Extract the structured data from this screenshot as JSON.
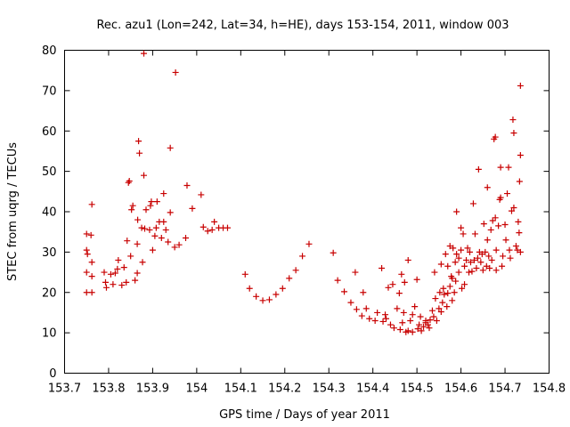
{
  "chart_data": {
    "type": "scatter",
    "title": "Rec. azu1 (Lon=242, Lat=34, h=HE), days 153-154, 2011, window 003",
    "xlabel": "GPS time / Days of year 2011",
    "ylabel": "STEC from uqrg / TECUs",
    "xlim": [
      153.7,
      154.8
    ],
    "ylim": [
      0,
      80
    ],
    "xticks": [
      153.7,
      153.8,
      153.9,
      154,
      154.1,
      154.2,
      154.3,
      154.4,
      154.5,
      154.6,
      154.7,
      154.8
    ],
    "xtick_labels": [
      "153.7",
      "153.8",
      "153.9",
      "154",
      "154.1",
      "154.2",
      "154.3",
      "154.4",
      "154.5",
      "154.6",
      "154.7",
      "154.8"
    ],
    "yticks": [
      0,
      10,
      20,
      30,
      40,
      50,
      60,
      70,
      80
    ],
    "ytick_labels": [
      "0",
      "10",
      "20",
      "30",
      "40",
      "50",
      "60",
      "70",
      "80"
    ],
    "grid": false,
    "marker": "+",
    "color": "#c80000",
    "points": [
      [
        153.75,
        34.5
      ],
      [
        153.76,
        34.2
      ],
      [
        153.762,
        41.8
      ],
      [
        153.75,
        30.5
      ],
      [
        153.752,
        29.5
      ],
      [
        153.762,
        27.5
      ],
      [
        153.75,
        25
      ],
      [
        153.762,
        24
      ],
      [
        153.75,
        20
      ],
      [
        153.762,
        20
      ],
      [
        153.79,
        25
      ],
      [
        153.793,
        22.5
      ],
      [
        153.795,
        21.2
      ],
      [
        153.805,
        24.5
      ],
      [
        153.81,
        22
      ],
      [
        153.815,
        24.8
      ],
      [
        153.82,
        25.8
      ],
      [
        153.822,
        28
      ],
      [
        153.83,
        21.8
      ],
      [
        153.835,
        26.2
      ],
      [
        153.84,
        22.5
      ],
      [
        153.842,
        32.8
      ],
      [
        153.845,
        47.2
      ],
      [
        153.847,
        47.6
      ],
      [
        153.85,
        29
      ],
      [
        153.852,
        40.5
      ],
      [
        153.855,
        41.5
      ],
      [
        153.86,
        23
      ],
      [
        153.865,
        24.8
      ],
      [
        153.865,
        32
      ],
      [
        153.866,
        38
      ],
      [
        153.868,
        57.5
      ],
      [
        153.87,
        54.5
      ],
      [
        153.875,
        36
      ],
      [
        153.877,
        27.5
      ],
      [
        153.88,
        49
      ],
      [
        153.882,
        35.8
      ],
      [
        153.885,
        40.5
      ],
      [
        153.88,
        79.2
      ],
      [
        153.893,
        35.5
      ],
      [
        153.895,
        41.5
      ],
      [
        153.897,
        42.5
      ],
      [
        153.9,
        30.5
      ],
      [
        153.905,
        34
      ],
      [
        153.908,
        36
      ],
      [
        153.91,
        42.5
      ],
      [
        153.915,
        37.5
      ],
      [
        153.92,
        33.5
      ],
      [
        153.925,
        37.5
      ],
      [
        153.925,
        44.5
      ],
      [
        153.93,
        35.5
      ],
      [
        153.935,
        32.5
      ],
      [
        153.94,
        39.8
      ],
      [
        153.94,
        55.8
      ],
      [
        153.95,
        31.2
      ],
      [
        153.952,
        74.5
      ],
      [
        153.96,
        31.8
      ],
      [
        153.975,
        33.5
      ],
      [
        153.978,
        46.5
      ],
      [
        153.99,
        40.8
      ],
      [
        154.01,
        44.2
      ],
      [
        154.015,
        36.2
      ],
      [
        154.025,
        35.2
      ],
      [
        154.035,
        35.5
      ],
      [
        154.04,
        37.5
      ],
      [
        154.05,
        36
      ],
      [
        154.06,
        36
      ],
      [
        154.07,
        36
      ],
      [
        154.11,
        24.5
      ],
      [
        154.12,
        21
      ],
      [
        154.135,
        19
      ],
      [
        154.15,
        18
      ],
      [
        154.165,
        18.2
      ],
      [
        154.18,
        19.5
      ],
      [
        154.195,
        21
      ],
      [
        154.21,
        23.5
      ],
      [
        154.225,
        25.5
      ],
      [
        154.24,
        29
      ],
      [
        154.255,
        32
      ],
      [
        154.31,
        29.8
      ],
      [
        154.32,
        23
      ],
      [
        154.335,
        20.2
      ],
      [
        154.35,
        17.5
      ],
      [
        154.36,
        25
      ],
      [
        154.363,
        15.8
      ],
      [
        154.375,
        14.2
      ],
      [
        154.378,
        20
      ],
      [
        154.385,
        16
      ],
      [
        154.392,
        13.5
      ],
      [
        154.405,
        13
      ],
      [
        154.41,
        15
      ],
      [
        154.42,
        26
      ],
      [
        154.423,
        12.8
      ],
      [
        154.428,
        14.5
      ],
      [
        154.43,
        13.5
      ],
      [
        154.435,
        21.2
      ],
      [
        154.44,
        12
      ],
      [
        154.445,
        22
      ],
      [
        154.448,
        11.2
      ],
      [
        154.455,
        16
      ],
      [
        154.46,
        19.8
      ],
      [
        154.462,
        10.8
      ],
      [
        154.465,
        24.5
      ],
      [
        154.467,
        12.5
      ],
      [
        154.47,
        15
      ],
      [
        154.472,
        22.5
      ],
      [
        154.475,
        10.2
      ],
      [
        154.48,
        10.5
      ],
      [
        154.48,
        28
      ],
      [
        154.485,
        13
      ],
      [
        154.49,
        14.5
      ],
      [
        154.49,
        10.2
      ],
      [
        154.495,
        16.5
      ],
      [
        154.5,
        23.2
      ],
      [
        154.502,
        11
      ],
      [
        154.505,
        12
      ],
      [
        154.508,
        14
      ],
      [
        154.51,
        10.5
      ],
      [
        154.515,
        11.5
      ],
      [
        154.52,
        13
      ],
      [
        154.52,
        12.5
      ],
      [
        154.525,
        12
      ],
      [
        154.528,
        11.2
      ],
      [
        154.53,
        13.2
      ],
      [
        154.535,
        15.5
      ],
      [
        154.538,
        14
      ],
      [
        154.54,
        25
      ],
      [
        154.542,
        18.5
      ],
      [
        154.545,
        13
      ],
      [
        154.55,
        16
      ],
      [
        154.552,
        20
      ],
      [
        154.555,
        15.2
      ],
      [
        154.555,
        27
      ],
      [
        154.558,
        17.5
      ],
      [
        154.56,
        21
      ],
      [
        154.562,
        19.5
      ],
      [
        154.565,
        29.5
      ],
      [
        154.568,
        16.5
      ],
      [
        154.57,
        19.8
      ],
      [
        154.57,
        26.5
      ],
      [
        154.575,
        21.5
      ],
      [
        154.575,
        31.5
      ],
      [
        154.578,
        24
      ],
      [
        154.58,
        18
      ],
      [
        154.58,
        23.5
      ],
      [
        154.582,
        31
      ],
      [
        154.585,
        20
      ],
      [
        154.587,
        27.5
      ],
      [
        154.588,
        22.8
      ],
      [
        154.59,
        29.5
      ],
      [
        154.59,
        40
      ],
      [
        154.595,
        25
      ],
      [
        154.595,
        28.5
      ],
      [
        154.6,
        30.5
      ],
      [
        154.6,
        36
      ],
      [
        154.602,
        21
      ],
      [
        154.605,
        34.5
      ],
      [
        154.608,
        26.5
      ],
      [
        154.608,
        22
      ],
      [
        154.612,
        28
      ],
      [
        154.615,
        31
      ],
      [
        154.618,
        25
      ],
      [
        154.62,
        30
      ],
      [
        154.622,
        27.5
      ],
      [
        154.625,
        25.2
      ],
      [
        154.628,
        42
      ],
      [
        154.63,
        28
      ],
      [
        154.632,
        34.5
      ],
      [
        154.635,
        26
      ],
      [
        154.638,
        28.5
      ],
      [
        154.64,
        50.5
      ],
      [
        154.642,
        30
      ],
      [
        154.645,
        27.5
      ],
      [
        154.648,
        29.5
      ],
      [
        154.65,
        25.5
      ],
      [
        154.652,
        37
      ],
      [
        154.655,
        30
      ],
      [
        154.658,
        26.5
      ],
      [
        154.66,
        33
      ],
      [
        154.66,
        46
      ],
      [
        154.663,
        29
      ],
      [
        154.665,
        26
      ],
      [
        154.668,
        35.5
      ],
      [
        154.67,
        28
      ],
      [
        154.672,
        37.8
      ],
      [
        154.675,
        58
      ],
      [
        154.678,
        58.5
      ],
      [
        154.678,
        38.5
      ],
      [
        154.68,
        30.5
      ],
      [
        154.68,
        25.5
      ],
      [
        154.685,
        36.5
      ],
      [
        154.688,
        43
      ],
      [
        154.69,
        43.5
      ],
      [
        154.69,
        51
      ],
      [
        154.693,
        26.5
      ],
      [
        154.695,
        29
      ],
      [
        154.7,
        36.8
      ],
      [
        154.702,
        33
      ],
      [
        154.705,
        44.5
      ],
      [
        154.708,
        51
      ],
      [
        154.71,
        30.5
      ],
      [
        154.712,
        28.5
      ],
      [
        154.715,
        40.2
      ],
      [
        154.718,
        62.8
      ],
      [
        154.72,
        59.5
      ],
      [
        154.72,
        41
      ],
      [
        154.725,
        31.5
      ],
      [
        154.728,
        30.5
      ],
      [
        154.73,
        37.5
      ],
      [
        154.732,
        34.8
      ],
      [
        154.733,
        47.5
      ],
      [
        154.735,
        54
      ],
      [
        154.735,
        71.2
      ],
      [
        154.735,
        30
      ]
    ]
  }
}
